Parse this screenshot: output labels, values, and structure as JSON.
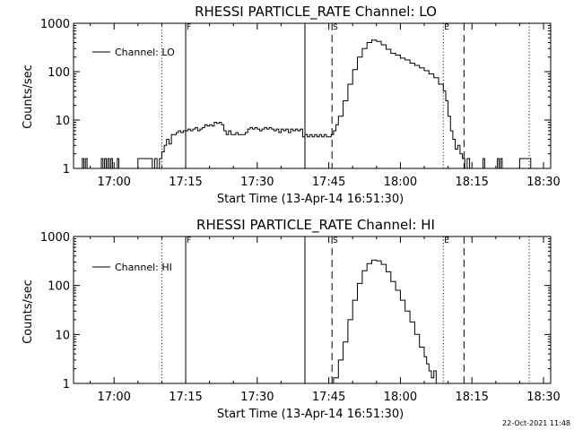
{
  "footer": {
    "date_stamp": "22-Oct-2021 11:48"
  },
  "colors": {
    "background": "#ffffff",
    "ink": "#000000"
  },
  "chart_data": [
    {
      "type": "line",
      "title": "RHESSI PARTICLE_RATE Channel: LO",
      "xlabel": "Start Time (13-Apr-14 16:51:30)",
      "ylabel": "Counts/sec",
      "y_scale": "log",
      "ylim": [
        1,
        1000
      ],
      "xlim": [
        "16:51:30",
        "18:31:30"
      ],
      "x_ticks": [
        "17:00",
        "17:15",
        "17:30",
        "17:45",
        "18:00",
        "18:15",
        "18:30"
      ],
      "y_ticks": [
        "1",
        "10",
        "100",
        "1000"
      ],
      "legend": {
        "entries": [
          "Channel: LO"
        ],
        "placement": "top-left"
      },
      "markers": [
        {
          "time": "17:10:00",
          "style": "dotted"
        },
        {
          "time": "17:15:00",
          "style": "solid",
          "label": "F"
        },
        {
          "time": "17:40:00",
          "style": "solid"
        },
        {
          "time": "17:45:40",
          "style": "dashed",
          "label": "S"
        },
        {
          "time": "18:09:00",
          "style": "dotted",
          "label": "E"
        },
        {
          "time": "18:13:20",
          "style": "dashed"
        },
        {
          "time": "18:27:00",
          "style": "dotted"
        }
      ],
      "series": [
        {
          "name": "Channel: LO",
          "points": [
            [
              "16:53:00",
              1
            ],
            [
              "16:53:20",
              1.6
            ],
            [
              "16:53:40",
              1
            ],
            [
              "16:54:00",
              1.6
            ],
            [
              "16:54:20",
              1
            ],
            [
              "16:57:00",
              1
            ],
            [
              "16:57:20",
              1.6
            ],
            [
              "16:57:40",
              1
            ],
            [
              "16:58:00",
              1.6
            ],
            [
              "16:58:20",
              1
            ],
            [
              "16:58:40",
              1.6
            ],
            [
              "16:59:00",
              1
            ],
            [
              "16:59:20",
              1.6
            ],
            [
              "16:59:40",
              1
            ],
            [
              "17:00:20",
              1
            ],
            [
              "17:00:40",
              1.6
            ],
            [
              "17:01:00",
              1
            ],
            [
              "17:05:00",
              1.6
            ],
            [
              "17:07:30",
              1.6
            ],
            [
              "17:08:00",
              1
            ],
            [
              "17:08:30",
              1.6
            ],
            [
              "17:09:00",
              1
            ],
            [
              "17:09:30",
              1.6
            ],
            [
              "17:10:00",
              2.2
            ],
            [
              "17:10:30",
              3
            ],
            [
              "17:11:00",
              4
            ],
            [
              "17:11:30",
              3.2
            ],
            [
              "17:12:00",
              5
            ],
            [
              "17:12:30",
              5
            ],
            [
              "17:13:00",
              5.5
            ],
            [
              "17:13:30",
              6
            ],
            [
              "17:14:00",
              5.5
            ],
            [
              "17:14:30",
              6
            ],
            [
              "17:15:00",
              6
            ],
            [
              "17:15:30",
              6.5
            ],
            [
              "17:16:00",
              6
            ],
            [
              "17:16:30",
              6.5
            ],
            [
              "17:17:00",
              7
            ],
            [
              "17:17:30",
              6
            ],
            [
              "17:18:00",
              6.5
            ],
            [
              "17:18:30",
              7
            ],
            [
              "17:19:00",
              8
            ],
            [
              "17:19:30",
              7.5
            ],
            [
              "17:20:00",
              8
            ],
            [
              "17:20:30",
              7.5
            ],
            [
              "17:21:00",
              9
            ],
            [
              "17:21:30",
              8.5
            ],
            [
              "17:22:00",
              9
            ],
            [
              "17:22:30",
              8
            ],
            [
              "17:23:00",
              6
            ],
            [
              "17:23:30",
              5
            ],
            [
              "17:24:00",
              6
            ],
            [
              "17:24:30",
              5
            ],
            [
              "17:25:00",
              5
            ],
            [
              "17:25:30",
              5.5
            ],
            [
              "17:26:00",
              5
            ],
            [
              "17:26:30",
              5
            ],
            [
              "17:27:00",
              5
            ],
            [
              "17:27:30",
              5.5
            ],
            [
              "17:28:00",
              6.5
            ],
            [
              "17:28:30",
              7
            ],
            [
              "17:29:00",
              6.5
            ],
            [
              "17:29:30",
              7
            ],
            [
              "17:30:00",
              6.5
            ],
            [
              "17:30:30",
              6
            ],
            [
              "17:31:00",
              6.5
            ],
            [
              "17:31:30",
              7
            ],
            [
              "17:32:00",
              6.5
            ],
            [
              "17:32:30",
              7
            ],
            [
              "17:33:00",
              6.5
            ],
            [
              "17:33:30",
              6
            ],
            [
              "17:34:00",
              6.5
            ],
            [
              "17:34:30",
              5.5
            ],
            [
              "17:35:00",
              6.5
            ],
            [
              "17:35:30",
              6
            ],
            [
              "17:36:00",
              6.5
            ],
            [
              "17:36:30",
              5.5
            ],
            [
              "17:37:00",
              6.5
            ],
            [
              "17:37:30",
              6
            ],
            [
              "17:38:00",
              6.5
            ],
            [
              "17:38:30",
              6
            ],
            [
              "17:39:00",
              6.5
            ],
            [
              "17:39:30",
              4.5
            ],
            [
              "17:40:00",
              5
            ],
            [
              "17:40:30",
              4.5
            ],
            [
              "17:41:00",
              5
            ],
            [
              "17:41:30",
              4.5
            ],
            [
              "17:42:00",
              5
            ],
            [
              "17:42:30",
              4.5
            ],
            [
              "17:43:00",
              5
            ],
            [
              "17:43:30",
              4.5
            ],
            [
              "17:44:00",
              5
            ],
            [
              "17:44:30",
              4.5
            ],
            [
              "17:45:00",
              4.5
            ],
            [
              "17:45:30",
              5
            ],
            [
              "17:46:00",
              6
            ],
            [
              "17:46:30",
              8
            ],
            [
              "17:47:00",
              12
            ],
            [
              "17:48:00",
              25
            ],
            [
              "17:49:00",
              55
            ],
            [
              "17:50:00",
              110
            ],
            [
              "17:51:00",
              200
            ],
            [
              "17:52:00",
              300
            ],
            [
              "17:53:00",
              400
            ],
            [
              "17:54:00",
              450
            ],
            [
              "17:55:00",
              420
            ],
            [
              "17:56:00",
              360
            ],
            [
              "17:57:00",
              290
            ],
            [
              "17:58:00",
              240
            ],
            [
              "17:59:00",
              220
            ],
            [
              "18:00:00",
              190
            ],
            [
              "18:01:00",
              175
            ],
            [
              "18:02:00",
              150
            ],
            [
              "18:03:00",
              135
            ],
            [
              "18:04:00",
              120
            ],
            [
              "18:05:00",
              105
            ],
            [
              "18:06:00",
              90
            ],
            [
              "18:07:00",
              75
            ],
            [
              "18:08:00",
              55
            ],
            [
              "18:09:00",
              40
            ],
            [
              "18:09:30",
              25
            ],
            [
              "18:10:00",
              12
            ],
            [
              "18:10:30",
              6
            ],
            [
              "18:11:00",
              4
            ],
            [
              "18:11:30",
              2.5
            ],
            [
              "18:12:00",
              3
            ],
            [
              "18:12:30",
              2
            ],
            [
              "18:13:00",
              1.6
            ],
            [
              "18:13:30",
              1
            ],
            [
              "18:14:00",
              1.6
            ],
            [
              "18:14:30",
              1
            ],
            [
              "18:17:00",
              1
            ],
            [
              "18:17:20",
              1.6
            ],
            [
              "18:17:40",
              1
            ],
            [
              "18:20:00",
              1
            ],
            [
              "18:20:20",
              1.6
            ],
            [
              "18:20:40",
              1
            ],
            [
              "18:21:00",
              1.6
            ],
            [
              "18:21:20",
              1
            ],
            [
              "18:23:00",
              1
            ],
            [
              "18:25:00",
              1.6
            ],
            [
              "18:27:00",
              1.6
            ],
            [
              "18:27:20",
              1
            ]
          ]
        }
      ]
    },
    {
      "type": "line",
      "title": "RHESSI PARTICLE_RATE Channel: HI",
      "xlabel": "Start Time (13-Apr-14 16:51:30)",
      "ylabel": "Counts/sec",
      "y_scale": "log",
      "ylim": [
        1,
        1000
      ],
      "xlim": [
        "16:51:30",
        "18:31:30"
      ],
      "x_ticks": [
        "17:00",
        "17:15",
        "17:30",
        "17:45",
        "18:00",
        "18:15",
        "18:30"
      ],
      "y_ticks": [
        "1",
        "10",
        "100",
        "1000"
      ],
      "legend": {
        "entries": [
          "Channel: HI"
        ],
        "placement": "top-left"
      },
      "markers": [
        {
          "time": "17:10:00",
          "style": "dotted"
        },
        {
          "time": "17:15:00",
          "style": "solid",
          "label": "F"
        },
        {
          "time": "17:40:00",
          "style": "solid"
        },
        {
          "time": "17:45:40",
          "style": "dashed",
          "label": "S"
        },
        {
          "time": "18:09:00",
          "style": "dotted",
          "label": "E"
        },
        {
          "time": "18:13:20",
          "style": "dashed"
        },
        {
          "time": "18:27:00",
          "style": "dotted"
        }
      ],
      "series": [
        {
          "name": "Channel: HI",
          "points": [
            [
              "17:45:40",
              1
            ],
            [
              "17:46:00",
              1.3
            ],
            [
              "17:47:00",
              3
            ],
            [
              "17:48:00",
              7
            ],
            [
              "17:49:00",
              20
            ],
            [
              "17:50:00",
              50
            ],
            [
              "17:51:00",
              110
            ],
            [
              "17:52:00",
              200
            ],
            [
              "17:53:00",
              280
            ],
            [
              "17:54:00",
              330
            ],
            [
              "17:55:00",
              320
            ],
            [
              "17:56:00",
              270
            ],
            [
              "17:57:00",
              190
            ],
            [
              "17:58:00",
              120
            ],
            [
              "17:59:00",
              80
            ],
            [
              "18:00:00",
              50
            ],
            [
              "18:01:00",
              30
            ],
            [
              "18:02:00",
              18
            ],
            [
              "18:03:00",
              10
            ],
            [
              "18:04:00",
              5.5
            ],
            [
              "18:05:00",
              3.5
            ],
            [
              "18:05:30",
              2.5
            ],
            [
              "18:06:00",
              1.8
            ],
            [
              "18:06:30",
              1.3
            ],
            [
              "18:07:00",
              1.8
            ],
            [
              "18:07:30",
              1
            ]
          ]
        }
      ]
    }
  ]
}
